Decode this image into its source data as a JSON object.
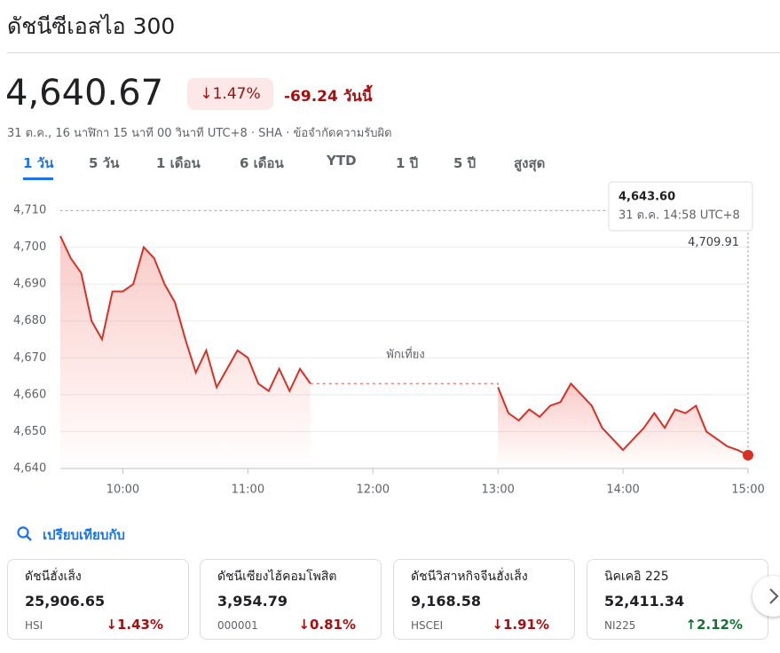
{
  "header": {
    "title": "ดัชนีซีเอสไอ 300",
    "price": "4,640.67",
    "change_pct": "↓1.47%",
    "change_abs": "-69.24 วันนี้",
    "subtitle": "31 ต.ค., 16 นาฬิกา 15 นาที 00 วินาที UTC+8 · SHA · ข้อจำกัดความรับผิด"
  },
  "tabs": {
    "items": [
      "1 วัน",
      "5 วัน",
      "1 เดือน",
      "6 เดือน",
      "YTD",
      "1 ปี",
      "5 ปี",
      "สูงสุด"
    ],
    "selected": 0
  },
  "chart_data": {
    "type": "line",
    "color": "#d93025",
    "x": [
      570,
      575,
      580,
      585,
      590,
      595,
      600,
      605,
      610,
      615,
      620,
      625,
      630,
      635,
      640,
      645,
      650,
      655,
      660,
      665,
      670,
      675,
      680,
      685,
      690,
      735,
      780,
      785,
      790,
      795,
      800,
      805,
      810,
      815,
      820,
      825,
      830,
      835,
      840,
      845,
      850,
      855,
      860,
      865,
      870,
      875,
      880,
      885,
      890,
      895,
      900
    ],
    "values": [
      4703,
      4697,
      4693,
      4680,
      4675,
      4688,
      4688,
      4690,
      4700,
      4697,
      4690,
      4685,
      4675,
      4666,
      4672,
      4662,
      4667,
      4672,
      4670,
      4663,
      4661,
      4667,
      4661,
      4667,
      4663,
      null,
      4662,
      4655,
      4653,
      4656,
      4654,
      4657,
      4658,
      4663,
      4660,
      4657,
      4651,
      4648,
      4645,
      4648,
      4651,
      4655,
      4651,
      4656,
      4655,
      4657,
      4650,
      4648,
      4646,
      4645,
      4643.6
    ],
    "xlim": [
      570,
      900
    ],
    "xticks": [
      {
        "value": 600,
        "label": "10:00"
      },
      {
        "value": 660,
        "label": "11:00"
      },
      {
        "value": 720,
        "label": "12:00"
      },
      {
        "value": 780,
        "label": "13:00"
      },
      {
        "value": 840,
        "label": "14:00"
      },
      {
        "value": 900,
        "label": "15:00"
      }
    ],
    "ylim": [
      4640,
      4710
    ],
    "yticks": [
      {
        "value": 4640,
        "label": "4,640"
      },
      {
        "value": 4650,
        "label": "4,650"
      },
      {
        "value": 4660,
        "label": "4,660"
      },
      {
        "value": 4670,
        "label": "4,670"
      },
      {
        "value": 4680,
        "label": "4,680"
      },
      {
        "value": 4690,
        "label": "4,690"
      },
      {
        "value": 4700,
        "label": "4,700"
      },
      {
        "value": 4710,
        "label": "4,710"
      }
    ],
    "grid": true,
    "reference": {
      "value": 4709.91,
      "label": "4,709.91"
    },
    "annotation": "พักเที่ยง",
    "tooltip": {
      "value": "4,643.60",
      "time": "31 ต.ค. 14:58 UTC+8"
    }
  },
  "compare": {
    "title": "เปรียบเทียบกับ",
    "cards": [
      {
        "name": "ดัชนีฮั่งเส็ง",
        "value": "25,906.65",
        "ticker": "HSI",
        "change": "↓1.43%"
      },
      {
        "name": "ดัชนีเซียงไฮ้คอมโพสิต",
        "value": "3,954.79",
        "ticker": "000001",
        "change": "↓0.81%"
      },
      {
        "name": "ดัชนีวิสาหกิจจีนฮั่งเส็ง",
        "value": "9,168.58",
        "ticker": "HSCEI",
        "change": "↓1.91%"
      },
      {
        "name": "นิคเคอิ 225",
        "value": "52,411.34",
        "ticker": "NI225",
        "change": "↑2.12%"
      }
    ]
  }
}
